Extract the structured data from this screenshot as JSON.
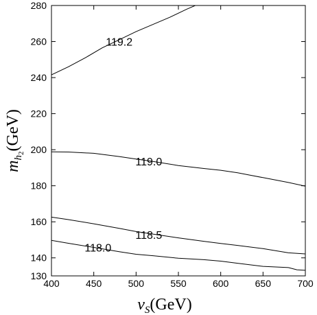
{
  "chart_data": {
    "type": "line",
    "xlabel": {
      "var": "v",
      "sub": "S",
      "unit": "(GeV)"
    },
    "ylabel": {
      "var": "m",
      "sub": "h",
      "subsub": "2",
      "unit": "(GeV)"
    },
    "xlim": [
      400,
      700
    ],
    "ylim": [
      130,
      280
    ],
    "x_ticks": [
      "400",
      "450",
      "500",
      "550",
      "600",
      "650",
      "700"
    ],
    "y_ticks": [
      "130",
      "140",
      "160",
      "180",
      "200",
      "220",
      "240",
      "260",
      "280"
    ],
    "grid": false,
    "series": [
      {
        "name": "119.2",
        "points": [
          [
            400,
            241.5
          ],
          [
            420,
            246
          ],
          [
            440,
            251
          ],
          [
            460,
            256.5
          ],
          [
            480,
            261
          ],
          [
            500,
            265.5
          ],
          [
            520,
            269.5
          ],
          [
            540,
            273.5
          ],
          [
            560,
            278
          ],
          [
            575,
            281
          ]
        ],
        "label_at": [
          480,
          260
        ]
      },
      {
        "name": "119.0",
        "points": [
          [
            400,
            198.8
          ],
          [
            420,
            198.7
          ],
          [
            450,
            198
          ],
          [
            480,
            196.2
          ],
          [
            500,
            194.8
          ],
          [
            520,
            193.5
          ],
          [
            550,
            191.2
          ],
          [
            580,
            189.6
          ],
          [
            600,
            188.6
          ],
          [
            620,
            187.2
          ],
          [
            650,
            184.5
          ],
          [
            680,
            181.8
          ],
          [
            700,
            179.8
          ]
        ],
        "label_at": [
          515,
          193.5
        ]
      },
      {
        "name": "118.5",
        "points": [
          [
            400,
            162.6
          ],
          [
            420,
            161.2
          ],
          [
            450,
            158.9
          ],
          [
            480,
            156.4
          ],
          [
            500,
            154.6
          ],
          [
            520,
            153.2
          ],
          [
            550,
            151.1
          ],
          [
            580,
            149.2
          ],
          [
            600,
            148
          ],
          [
            620,
            146.9
          ],
          [
            650,
            145.1
          ],
          [
            680,
            142.8
          ],
          [
            700,
            142.2
          ]
        ],
        "label_at": [
          515,
          152.8
        ]
      },
      {
        "name": "118.0",
        "points": [
          [
            400,
            149.7
          ],
          [
            420,
            148.1
          ],
          [
            450,
            145.8
          ],
          [
            480,
            143.4
          ],
          [
            500,
            142
          ],
          [
            520,
            141.2
          ],
          [
            550,
            139.8
          ],
          [
            580,
            139
          ],
          [
            600,
            138.2
          ],
          [
            620,
            137
          ],
          [
            650,
            135.3
          ],
          [
            680,
            134.6
          ],
          [
            690,
            133.4
          ],
          [
            700,
            133.1
          ]
        ],
        "label_at": [
          455,
          145.8
        ]
      }
    ]
  }
}
